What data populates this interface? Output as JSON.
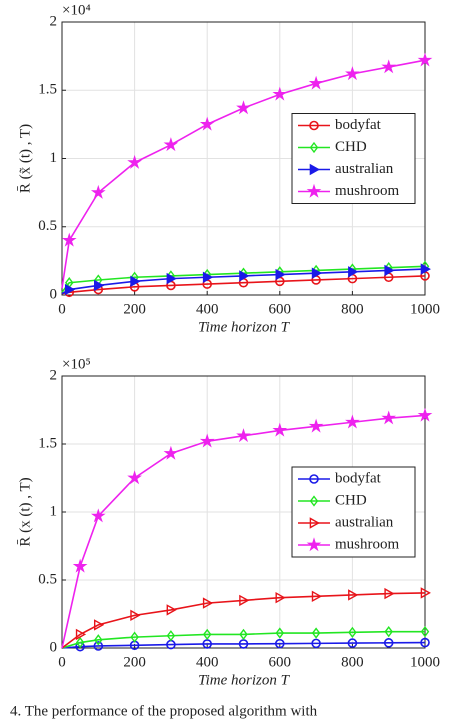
{
  "chart_data": [
    {
      "type": "line",
      "y_multiplier": "×10⁴",
      "ylabel": "R̄ (x̃ (t) , T)",
      "xlabel": "Time horizon T",
      "x": [
        0,
        20,
        100,
        200,
        300,
        400,
        500,
        600,
        700,
        800,
        900,
        1000
      ],
      "xlim": [
        0,
        1000
      ],
      "xticks": [
        0,
        200,
        400,
        600,
        800,
        1000
      ],
      "ylim": [
        0,
        2
      ],
      "yticks": [
        0,
        0.5,
        1,
        1.5,
        2
      ],
      "grid": true,
      "legend": "center right",
      "series": [
        {
          "name": "bodyfat",
          "color": "#e8141a",
          "marker": "o",
          "values": [
            0.01,
            0.02,
            0.04,
            0.06,
            0.07,
            0.08,
            0.09,
            0.1,
            0.11,
            0.12,
            0.13,
            0.14
          ]
        },
        {
          "name": "CHD",
          "color": "#22e622",
          "marker": "d",
          "values": [
            0.02,
            0.09,
            0.11,
            0.13,
            0.14,
            0.15,
            0.16,
            0.17,
            0.18,
            0.19,
            0.2,
            0.21
          ]
        },
        {
          "name": "australian",
          "color": "#1a1ae8",
          "marker": ">",
          "values": [
            0.01,
            0.04,
            0.07,
            0.1,
            0.12,
            0.13,
            0.14,
            0.15,
            0.16,
            0.17,
            0.18,
            0.19
          ]
        },
        {
          "name": "mushroom",
          "color": "#ee22ee",
          "marker": "*",
          "values": [
            0.05,
            0.4,
            0.75,
            0.97,
            1.1,
            1.25,
            1.37,
            1.47,
            1.55,
            1.62,
            1.67,
            1.72
          ]
        }
      ]
    },
    {
      "type": "line",
      "y_multiplier": "×10⁵",
      "ylabel": "R̄ (x (t) , T)",
      "xlabel": "Time horizon T",
      "x": [
        0,
        50,
        100,
        200,
        300,
        400,
        500,
        600,
        700,
        800,
        900,
        1000
      ],
      "xlim": [
        0,
        1000
      ],
      "xticks": [
        0,
        200,
        400,
        600,
        800,
        1000
      ],
      "ylim": [
        0,
        2
      ],
      "yticks": [
        0,
        0.5,
        1,
        1.5,
        2
      ],
      "grid": true,
      "legend": "center right",
      "series": [
        {
          "name": "bodyfat",
          "color": "#1a1ae8",
          "marker": "o",
          "values": [
            0,
            0.01,
            0.015,
            0.02,
            0.025,
            0.03,
            0.03,
            0.032,
            0.034,
            0.036,
            0.038,
            0.04
          ]
        },
        {
          "name": "CHD",
          "color": "#22e622",
          "marker": "d",
          "values": [
            0,
            0.04,
            0.06,
            0.08,
            0.09,
            0.1,
            0.1,
            0.11,
            0.11,
            0.115,
            0.12,
            0.12
          ]
        },
        {
          "name": "australian",
          "color": "#e8141a",
          "marker": ">",
          "values": [
            0,
            0.1,
            0.17,
            0.24,
            0.28,
            0.33,
            0.35,
            0.37,
            0.38,
            0.39,
            0.4,
            0.405
          ]
        },
        {
          "name": "mushroom",
          "color": "#ee22ee",
          "marker": "*",
          "values": [
            0,
            0.6,
            0.97,
            1.25,
            1.43,
            1.52,
            1.56,
            1.6,
            1.63,
            1.66,
            1.69,
            1.71
          ]
        }
      ]
    }
  ],
  "caption": "4. The performance of the proposed algorithm with"
}
